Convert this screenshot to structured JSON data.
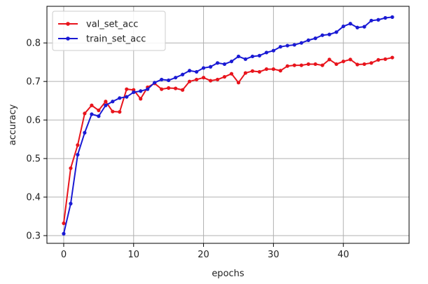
{
  "chart_data": {
    "type": "line",
    "title": "",
    "xlabel": "epochs",
    "ylabel": "accuracy",
    "xlim": [
      -2.4,
      49.4
    ],
    "ylim": [
      0.28,
      0.895
    ],
    "xticks": [
      0,
      10,
      20,
      30,
      40
    ],
    "yticks": [
      0.3,
      0.4,
      0.5,
      0.6,
      0.7,
      0.8
    ],
    "ytick_labels": [
      "0.3",
      "0.4",
      "0.5",
      "0.6",
      "0.7",
      "0.8"
    ],
    "xtick_labels": [
      "0",
      "10",
      "20",
      "30",
      "40"
    ],
    "grid": true,
    "legend_position": "top-left",
    "x": [
      0,
      1,
      2,
      3,
      4,
      5,
      6,
      7,
      8,
      9,
      10,
      11,
      12,
      13,
      14,
      15,
      16,
      17,
      18,
      19,
      20,
      21,
      22,
      23,
      24,
      25,
      26,
      27,
      28,
      29,
      30,
      31,
      32,
      33,
      34,
      35,
      36,
      37,
      38,
      39,
      40,
      41,
      42,
      43,
      44,
      45,
      46,
      47
    ],
    "series": [
      {
        "name": "val_set_acc",
        "color": "#e8141c",
        "values": [
          0.332,
          0.475,
          0.535,
          0.617,
          0.638,
          0.625,
          0.648,
          0.622,
          0.621,
          0.68,
          0.678,
          0.655,
          0.685,
          0.695,
          0.68,
          0.683,
          0.682,
          0.678,
          0.7,
          0.705,
          0.71,
          0.702,
          0.705,
          0.712,
          0.72,
          0.697,
          0.722,
          0.727,
          0.725,
          0.732,
          0.732,
          0.728,
          0.74,
          0.742,
          0.742,
          0.745,
          0.745,
          0.742,
          0.757,
          0.745,
          0.752,
          0.757,
          0.744,
          0.745,
          0.748,
          0.756,
          0.758,
          0.762
        ]
      },
      {
        "name": "train_set_acc",
        "color": "#1a1ad4",
        "values": [
          0.305,
          0.383,
          0.51,
          0.567,
          0.615,
          0.61,
          0.638,
          0.648,
          0.657,
          0.66,
          0.672,
          0.675,
          0.68,
          0.697,
          0.705,
          0.703,
          0.71,
          0.718,
          0.728,
          0.725,
          0.735,
          0.738,
          0.748,
          0.745,
          0.752,
          0.765,
          0.758,
          0.765,
          0.767,
          0.775,
          0.78,
          0.79,
          0.793,
          0.795,
          0.8,
          0.807,
          0.812,
          0.82,
          0.822,
          0.828,
          0.843,
          0.85,
          0.84,
          0.842,
          0.858,
          0.86,
          0.865,
          0.867
        ]
      }
    ]
  }
}
